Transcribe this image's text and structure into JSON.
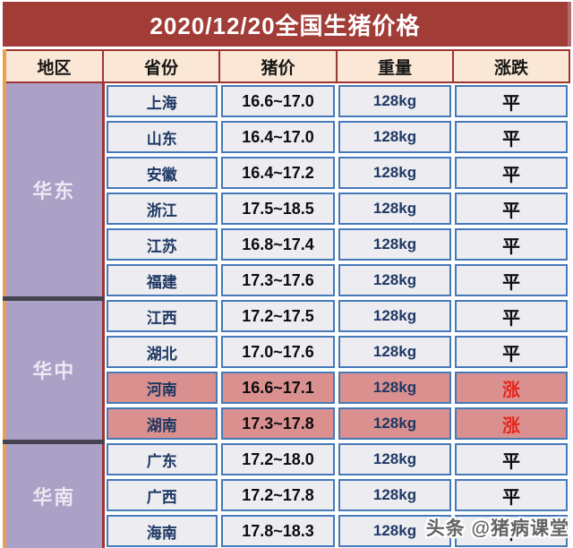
{
  "title": "2020/12/20全国生猪价格",
  "watermark": "头条 @猪病课堂",
  "colors": {
    "title_bg": "#a23c37",
    "header_bg": "#fae7d5",
    "header_border": "#9e3431",
    "region_bg": "#aba0c6",
    "region_separator": "#45434f",
    "left_edge_orange": "#e9a14d",
    "cell_bg": "#ededf1",
    "highlight_row_bg": "#d9908e",
    "cell_border_blue": "#4679b8",
    "province_text": "#1f3864",
    "rise_text": "#e8251c",
    "flat_text": "#0c0c10"
  },
  "chart_data": {
    "type": "table",
    "title": "2020/12/20全国生猪价格",
    "columns": [
      "地区",
      "省份",
      "猪价",
      "重量",
      "涨跌"
    ],
    "regions": [
      {
        "name": "华东",
        "rows": [
          {
            "province": "上海",
            "price": "16.6~17.0",
            "weight": "128kg",
            "change": "平",
            "highlight": false
          },
          {
            "province": "山东",
            "price": "16.4~17.0",
            "weight": "128kg",
            "change": "平",
            "highlight": false
          },
          {
            "province": "安徽",
            "price": "16.4~17.2",
            "weight": "128kg",
            "change": "平",
            "highlight": false
          },
          {
            "province": "浙江",
            "price": "17.5~18.5",
            "weight": "128kg",
            "change": "平",
            "highlight": false
          },
          {
            "province": "江苏",
            "price": "16.8~17.4",
            "weight": "128kg",
            "change": "平",
            "highlight": false
          },
          {
            "province": "福建",
            "price": "17.3~17.6",
            "weight": "128kg",
            "change": "平",
            "highlight": false
          }
        ]
      },
      {
        "name": "华中",
        "rows": [
          {
            "province": "江西",
            "price": "17.2~17.5",
            "weight": "128kg",
            "change": "平",
            "highlight": false
          },
          {
            "province": "湖北",
            "price": "17.0~17.6",
            "weight": "128kg",
            "change": "平",
            "highlight": false
          },
          {
            "province": "河南",
            "price": "16.6~17.1",
            "weight": "128kg",
            "change": "涨",
            "highlight": true
          },
          {
            "province": "湖南",
            "price": "17.3~17.8",
            "weight": "128kg",
            "change": "涨",
            "highlight": true
          }
        ]
      },
      {
        "name": "华南",
        "rows": [
          {
            "province": "广东",
            "price": "17.2~18.0",
            "weight": "128kg",
            "change": "平",
            "highlight": false
          },
          {
            "province": "广西",
            "price": "17.2~17.8",
            "weight": "128kg",
            "change": "平",
            "highlight": false
          },
          {
            "province": "海南",
            "price": "17.8~18.3",
            "weight": "128kg",
            "change": "平",
            "highlight": false
          }
        ]
      }
    ]
  }
}
